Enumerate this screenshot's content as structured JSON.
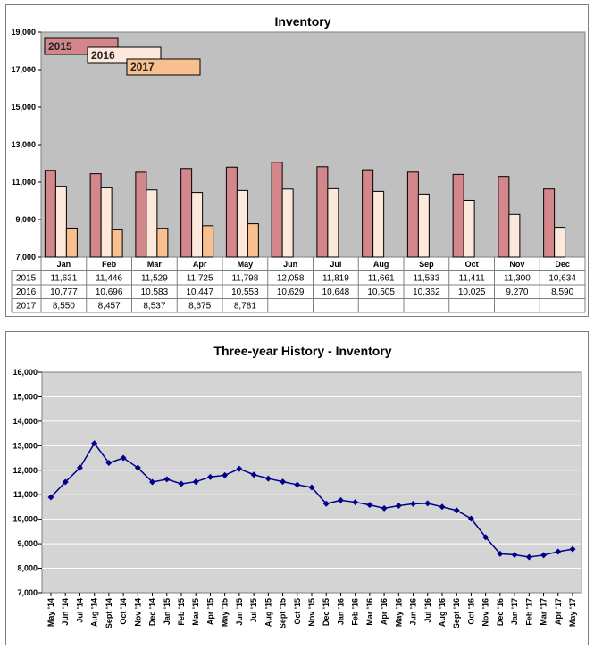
{
  "chart_data": [
    {
      "type": "bar",
      "title": "Inventory",
      "categories": [
        "Jan",
        "Feb",
        "Mar",
        "Apr",
        "May",
        "Jun",
        "Jul",
        "Aug",
        "Sep",
        "Oct",
        "Nov",
        "Dec"
      ],
      "ylim": [
        7000,
        19000
      ],
      "yticks": [
        "19,000",
        "17,000",
        "15,000",
        "13,000",
        "11,000",
        "9,000",
        "7,000"
      ],
      "ytick_values": [
        19000,
        17000,
        15000,
        13000,
        11000,
        9000,
        7000
      ],
      "grid": false,
      "legend_position": "top-left",
      "series": [
        {
          "name": "2015",
          "color": "#d4878a",
          "values": [
            11631,
            11446,
            11529,
            11725,
            11798,
            12058,
            11819,
            11661,
            11533,
            11411,
            11300,
            10634
          ],
          "labels": [
            "11,631",
            "11,446",
            "11,529",
            "11,725",
            "11,798",
            "12,058",
            "11,819",
            "11,661",
            "11,533",
            "11,411",
            "11,300",
            "10,634"
          ]
        },
        {
          "name": "2016",
          "color": "#fde9dc",
          "values": [
            10777,
            10696,
            10583,
            10447,
            10553,
            10629,
            10648,
            10505,
            10362,
            10025,
            9270,
            8590
          ],
          "labels": [
            "10,777",
            "10,696",
            "10,583",
            "10,447",
            "10,553",
            "10,629",
            "10,648",
            "10,505",
            "10,362",
            "10,025",
            "9,270",
            "8,590"
          ]
        },
        {
          "name": "2017",
          "color": "#f9c08f",
          "values": [
            8550,
            8457,
            8537,
            8675,
            8781,
            null,
            null,
            null,
            null,
            null,
            null,
            null
          ],
          "labels": [
            "8,550",
            "8,457",
            "8,537",
            "8,675",
            "8,781",
            "",
            "",
            "",
            "",
            "",
            "",
            ""
          ]
        }
      ]
    },
    {
      "type": "line",
      "title": "Three-year History - Inventory",
      "color": "#00008b",
      "ylim": [
        7000,
        16000
      ],
      "yticks": [
        "16,000",
        "15,000",
        "14,000",
        "13,000",
        "12,000",
        "11,000",
        "10,000",
        "9,000",
        "8,000",
        "7,000"
      ],
      "ytick_values": [
        16000,
        15000,
        14000,
        13000,
        12000,
        11000,
        10000,
        9000,
        8000,
        7000
      ],
      "grid": true,
      "x": [
        "May '14",
        "Jun '14",
        "Jul '14",
        "Aug '14",
        "Sept '14",
        "Oct '14",
        "Nov '14",
        "Dec '14",
        "Jan '15",
        "Feb '15",
        "Mar '15",
        "Apr '15",
        "May '15",
        "Jun '15",
        "Jul '15",
        "Aug '15",
        "Sept '15",
        "Oct '15",
        "Nov '15",
        "Dec '15",
        "Jan '16",
        "Feb '16",
        "Mar '16",
        "Apr '16",
        "May '16",
        "Jun '16",
        "Jul '16",
        "Aug '16",
        "Sept '16",
        "Oct '16",
        "Nov '16",
        "Dec '16",
        "Jan '17",
        "Feb '17",
        "Mar '17",
        "Apr '17",
        "May '17"
      ],
      "y": [
        10900,
        11520,
        12100,
        13100,
        12300,
        12500,
        12100,
        11520,
        11631,
        11446,
        11529,
        11725,
        11798,
        12058,
        11819,
        11661,
        11533,
        11411,
        11300,
        10634,
        10777,
        10696,
        10583,
        10447,
        10553,
        10629,
        10648,
        10505,
        10362,
        10025,
        9270,
        8590,
        8550,
        8457,
        8537,
        8675,
        8781
      ]
    }
  ]
}
